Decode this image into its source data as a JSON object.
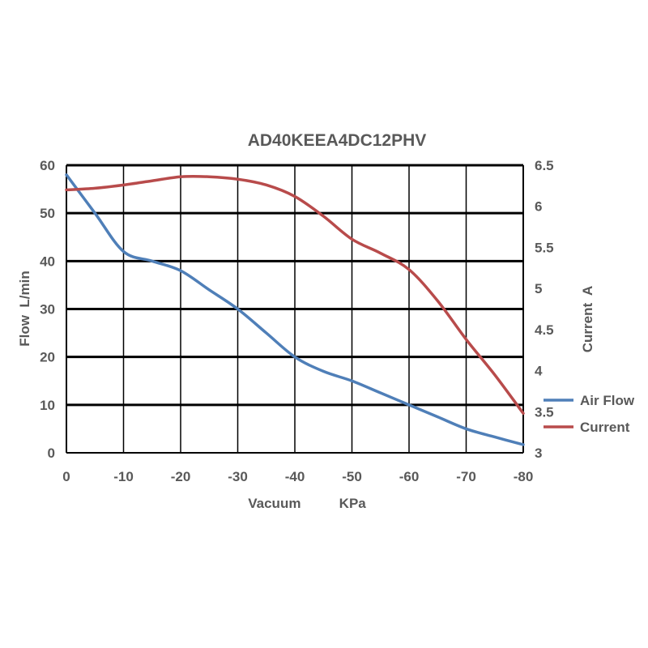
{
  "chart_data": {
    "type": "line",
    "title": "AD40KEEA4DC12PHV",
    "xlabel": "Vacuum          KPa",
    "ylabel": "Flow  L/min",
    "y2label": "Current  A",
    "xlim": [
      0,
      -80
    ],
    "ylim": [
      0,
      60
    ],
    "y2lim": [
      3,
      6.5
    ],
    "x_ticks": [
      "0",
      "-10",
      "-20",
      "-30",
      "-40",
      "-50",
      "-60",
      "-70",
      "-80"
    ],
    "y_ticks": [
      "0",
      "10",
      "20",
      "30",
      "40",
      "50",
      "60"
    ],
    "y2_ticks": [
      "3",
      "3.5",
      "4",
      "4.5",
      "5",
      "5.5",
      "6",
      "6.5"
    ],
    "grid": true,
    "legend_position": "right",
    "series": [
      {
        "name": "Air Flow",
        "axis": "left",
        "color": "#4f7fb8",
        "x": [
          0,
          -5,
          -10,
          -15,
          -20,
          -25,
          -30,
          -35,
          -40,
          -45,
          -50,
          -55,
          -60,
          -65,
          -70,
          -75,
          -80
        ],
        "values": [
          58,
          50,
          42,
          40,
          38,
          34,
          30,
          25,
          20,
          17,
          15,
          12.5,
          10,
          7.5,
          5,
          3.3,
          1.7
        ]
      },
      {
        "name": "Current",
        "axis": "right",
        "color": "#b84b4b",
        "x": [
          0,
          -5,
          -10,
          -15,
          -20,
          -25,
          -30,
          -35,
          -40,
          -45,
          -50,
          -55,
          -60,
          -65,
          -70,
          -75,
          -80
        ],
        "values": [
          6.2,
          6.22,
          6.26,
          6.31,
          6.36,
          6.36,
          6.33,
          6.26,
          6.12,
          5.88,
          5.6,
          5.43,
          5.23,
          4.85,
          4.38,
          3.95,
          3.48
        ]
      }
    ]
  }
}
